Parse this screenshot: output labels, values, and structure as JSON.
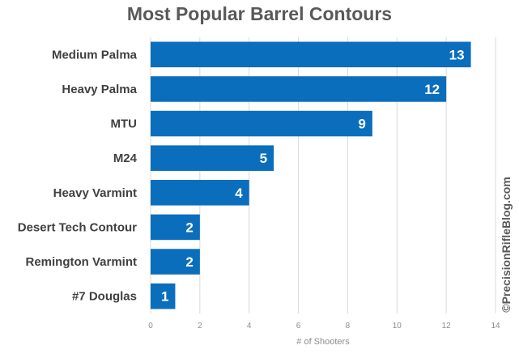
{
  "chart_data": {
    "type": "bar",
    "orientation": "horizontal",
    "title": "Most Popular Barrel Contours",
    "xlabel": "# of Shooters",
    "ylabel": "",
    "categories": [
      "Medium Palma",
      "Heavy Palma",
      "MTU",
      "M24",
      "Heavy Varmint",
      "Desert Tech Contour",
      "Remington Varmint",
      "#7 Douglas"
    ],
    "values": [
      13,
      12,
      9,
      5,
      4,
      2,
      2,
      1
    ],
    "xlim": [
      0,
      14
    ],
    "xticks": [
      0,
      2,
      4,
      6,
      8,
      10,
      12,
      14
    ],
    "grid": "vertical",
    "legend": "none",
    "data_labels": "inside-end",
    "bar_color": "#0a6ebd"
  },
  "watermark": "©PrecisionRifleBlog.com"
}
